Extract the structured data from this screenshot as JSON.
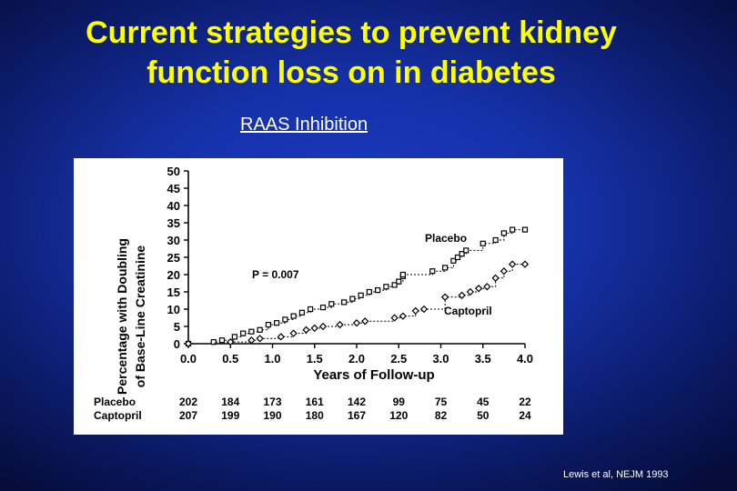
{
  "slide": {
    "title_line1": "Current strategies to prevent kidney",
    "title_line2": "function loss on in diabetes",
    "subtitle": "RAAS Inhibition",
    "citation": "Lewis et al, NEJM 1993",
    "title_color": "#ffff00"
  },
  "chart_data": {
    "type": "line",
    "xlabel": "Years of Follow-up",
    "ylabel": "Percentage with Doubling of Base-Line Creatinine",
    "ylabel_line1": "Percentage with Doubling",
    "ylabel_line2": "of Base-Line Creatinine",
    "xlim": [
      0,
      4
    ],
    "ylim": [
      0,
      50
    ],
    "x_ticks": [
      "0.0",
      "0.5",
      "1.0",
      "1.5",
      "2.0",
      "2.5",
      "3.0",
      "3.5",
      "4.0"
    ],
    "y_ticks": [
      "0",
      "5",
      "10",
      "15",
      "20",
      "25",
      "30",
      "35",
      "40",
      "45",
      "50"
    ],
    "annotation": "P = 0.007",
    "series": [
      {
        "name": "Placebo",
        "marker": "square",
        "x": [
          0,
          0.3,
          0.4,
          0.55,
          0.65,
          0.75,
          0.85,
          0.95,
          1.05,
          1.15,
          1.25,
          1.35,
          1.45,
          1.6,
          1.7,
          1.85,
          1.95,
          2.05,
          2.15,
          2.25,
          2.35,
          2.45,
          2.5,
          2.55,
          2.55,
          2.9,
          3.05,
          3.15,
          3.2,
          3.25,
          3.3,
          3.5,
          3.65,
          3.75,
          3.85,
          4.0
        ],
        "y": [
          0,
          0.5,
          1,
          2,
          3,
          3.5,
          4,
          5.5,
          6,
          7,
          8,
          9,
          10,
          10.5,
          11.5,
          12,
          13,
          14,
          15,
          15.5,
          16.5,
          17,
          18,
          19.5,
          20,
          21,
          22,
          24,
          25,
          26,
          27,
          29,
          30,
          32,
          33,
          33
        ]
      },
      {
        "name": "Captopril",
        "marker": "diamond",
        "x": [
          0,
          0.5,
          0.75,
          0.85,
          1.1,
          1.25,
          1.4,
          1.5,
          1.6,
          1.8,
          2.0,
          2.1,
          2.45,
          2.55,
          2.7,
          2.8,
          3.05,
          3.25,
          3.35,
          3.45,
          3.55,
          3.65,
          3.75,
          3.85,
          4.0
        ],
        "y": [
          0,
          0.5,
          1,
          1.5,
          2,
          3,
          4,
          4.5,
          5,
          5.5,
          6,
          6.5,
          7.5,
          8,
          9.5,
          10,
          13.5,
          14,
          15,
          16,
          16.5,
          19,
          21,
          23,
          23
        ]
      }
    ],
    "table": {
      "rows": [
        {
          "label": "Placebo",
          "values": [
            "202",
            "184",
            "173",
            "161",
            "142",
            "99",
            "75",
            "45",
            "22"
          ]
        },
        {
          "label": "Captopril",
          "values": [
            "207",
            "199",
            "190",
            "180",
            "167",
            "120",
            "82",
            "50",
            "24"
          ]
        }
      ]
    }
  }
}
